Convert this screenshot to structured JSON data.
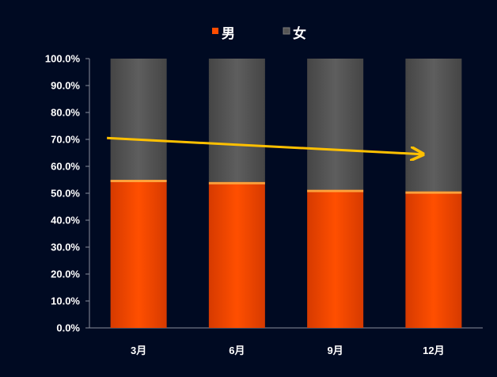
{
  "chart_data": {
    "type": "bar",
    "stacked": true,
    "percent": true,
    "categories": [
      "3月",
      "6月",
      "9月",
      "12月"
    ],
    "series": [
      {
        "name": "男",
        "values": [
          55.0,
          54.2,
          51.3,
          50.7
        ],
        "color": "#ff4d00"
      },
      {
        "name": "女",
        "values": [
          45.0,
          45.8,
          48.7,
          49.3
        ],
        "color": "#555555"
      }
    ],
    "ylim": [
      0,
      100
    ],
    "yticks": [
      "0.0%",
      "10.0%",
      "20.0%",
      "30.0%",
      "40.0%",
      "50.0%",
      "60.0%",
      "70.0%",
      "80.0%",
      "90.0%",
      "100.0%"
    ],
    "legend_position": "top-center",
    "grid": false,
    "annotations": [
      {
        "type": "trend-arrow",
        "color": "#ffc000",
        "from": {
          "x": "3月",
          "y": 70.5
        },
        "to": {
          "x": "12月",
          "y": 64.5
        }
      }
    ]
  }
}
